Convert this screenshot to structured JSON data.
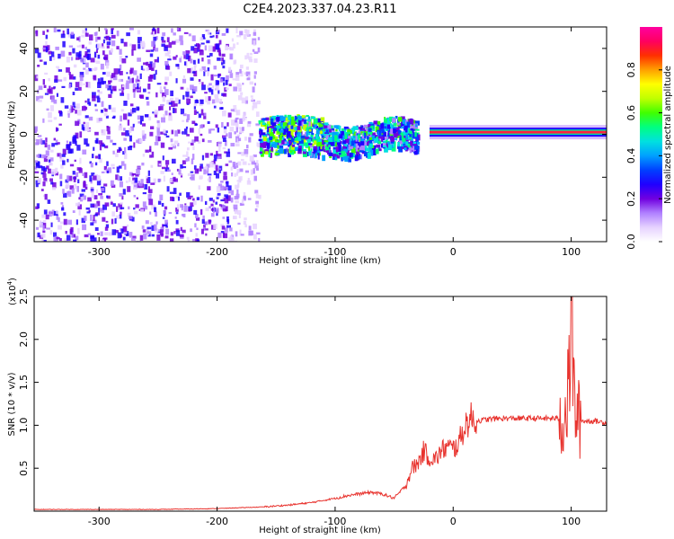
{
  "title": "C2E4.2023.337.04.23.R11",
  "chart_data": [
    {
      "type": "heatmap",
      "xlabel": "Height of straight line (km)",
      "ylabel": "Frequency (Hz)",
      "xlim": [
        -355,
        130
      ],
      "ylim": [
        -50,
        50
      ],
      "x_ticks": [
        -300,
        -200,
        -100,
        0,
        100
      ],
      "y_ticks": [
        -40,
        -20,
        0,
        20,
        40
      ],
      "x_tick_labels": [
        "-300",
        "-200",
        "-100",
        "0",
        "100"
      ],
      "y_tick_labels": [
        "-40",
        "-20",
        "0",
        "20",
        "40"
      ],
      "colorbar": {
        "label": "Normalized spectral amplitude",
        "range": [
          0,
          1
        ],
        "ticks": [
          0.0,
          0.2,
          0.4,
          0.6,
          0.8
        ],
        "tick_labels": [
          "0.0",
          "0.2",
          "0.4",
          "0.6",
          "0.8"
        ],
        "colors": [
          "#ffffff",
          "#e6d2ff",
          "#b080ff",
          "#7000e0",
          "#2000ff",
          "#0040ff",
          "#00a0ff",
          "#00e0e0",
          "#00ff80",
          "#40ff00",
          "#c0ff00",
          "#ffff00",
          "#ffa000",
          "#ff3000",
          "#ff0060",
          "#ff00a0"
        ]
      },
      "regions": [
        {
          "x_range": [
            -355,
            -190
          ],
          "f_range": [
            -50,
            50
          ],
          "amplitude": 0.15,
          "pattern": "broadband noise"
        },
        {
          "x_range": [
            -190,
            -165
          ],
          "f_range": [
            -50,
            50
          ],
          "amplitude": 0.08,
          "pattern": "fading noise"
        },
        {
          "x_range": [
            -165,
            -110
          ],
          "f_range": [
            -12,
            10
          ],
          "amplitude": 0.35,
          "pattern": "band"
        },
        {
          "x_range": [
            -110,
            -30
          ],
          "f_range": [
            -10,
            8
          ],
          "amplitude": 0.3,
          "pattern": "wavy band"
        },
        {
          "x_range": [
            -20,
            130
          ],
          "f_range": [
            -2,
            4
          ],
          "amplitude": 0.9,
          "pattern": "narrow carrier line"
        }
      ]
    },
    {
      "type": "line",
      "xlabel": "Height of straight line (km)",
      "ylabel": "SNR (10 * v/v)",
      "y_multiplier_label": "(x10",
      "y_multiplier_exp": "4",
      "y_multiplier_close": ")",
      "xlim": [
        -355,
        130
      ],
      "ylim": [
        0,
        2.5
      ],
      "x_ticks": [
        -300,
        -200,
        -100,
        0,
        100
      ],
      "y_ticks": [
        0.5,
        1.0,
        1.5,
        2.0,
        2.5
      ],
      "x_tick_labels": [
        "-300",
        "-200",
        "-100",
        "0",
        "100"
      ],
      "y_tick_labels": [
        "0.5",
        "1.0",
        "1.5",
        "2.0",
        "2.5"
      ],
      "color": "#e8332e",
      "series": [
        {
          "name": "",
          "x": [
            -355,
            -300,
            -250,
            -200,
            -160,
            -140,
            -120,
            -100,
            -90,
            -80,
            -70,
            -60,
            -50,
            -40,
            -35,
            -30,
            -25,
            -20,
            -15,
            -10,
            -5,
            0,
            5,
            10,
            15,
            20,
            30,
            40,
            50,
            60,
            70,
            80,
            90,
            95,
            98,
            100,
            102,
            105,
            110,
            120,
            130
          ],
          "y": [
            0.02,
            0.02,
            0.02,
            0.03,
            0.05,
            0.07,
            0.1,
            0.15,
            0.18,
            0.2,
            0.22,
            0.2,
            0.15,
            0.3,
            0.5,
            0.55,
            0.7,
            0.62,
            0.6,
            0.7,
            0.75,
            0.72,
            0.8,
            1.0,
            1.08,
            1.05,
            1.07,
            1.08,
            1.08,
            1.08,
            1.08,
            1.08,
            1.08,
            1.1,
            1.4,
            2.45,
            1.4,
            1.08,
            1.05,
            1.05,
            1.03
          ]
        }
      ]
    }
  ]
}
